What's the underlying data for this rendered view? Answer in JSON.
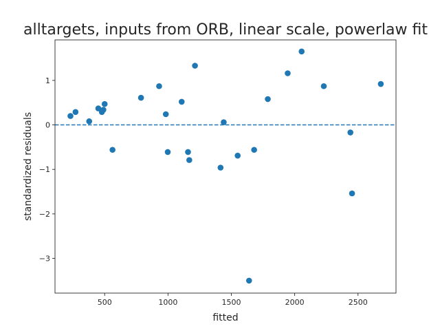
{
  "chart_data": {
    "type": "scatter",
    "title": "alltargets, inputs from ORB, linear scale, powerlaw fit",
    "xlabel": "fitted",
    "ylabel": "standardized residuals",
    "xlim": [
      108,
      2800
    ],
    "ylim": [
      -3.78,
      1.91
    ],
    "xticks": [
      500,
      1000,
      1500,
      2000,
      2500
    ],
    "yticks": [
      -3,
      -2,
      -1,
      0,
      1
    ],
    "xtick_labels": [
      "500",
      "1000",
      "1500",
      "2000",
      "2500"
    ],
    "ytick_labels": [
      "−3",
      "−2",
      "−1",
      "0",
      "1"
    ],
    "reference_line": {
      "y": 0,
      "style": "dashed"
    },
    "grid": false,
    "colors": {
      "points": "#1f77b4",
      "reference_line": "#1f77b4",
      "axes": "#262626"
    },
    "points": [
      {
        "x": 230,
        "y": 0.2
      },
      {
        "x": 270,
        "y": 0.29
      },
      {
        "x": 378,
        "y": 0.08
      },
      {
        "x": 450,
        "y": 0.37
      },
      {
        "x": 478,
        "y": 0.29
      },
      {
        "x": 490,
        "y": 0.34
      },
      {
        "x": 500,
        "y": 0.47
      },
      {
        "x": 562,
        "y": -0.56
      },
      {
        "x": 787,
        "y": 0.61
      },
      {
        "x": 930,
        "y": 0.87
      },
      {
        "x": 983,
        "y": 0.24
      },
      {
        "x": 998,
        "y": -0.61
      },
      {
        "x": 1108,
        "y": 0.52
      },
      {
        "x": 1158,
        "y": -0.61
      },
      {
        "x": 1168,
        "y": -0.79
      },
      {
        "x": 1213,
        "y": 1.33
      },
      {
        "x": 1415,
        "y": -0.96
      },
      {
        "x": 1440,
        "y": 0.06
      },
      {
        "x": 1550,
        "y": -0.69
      },
      {
        "x": 1640,
        "y": -3.5
      },
      {
        "x": 1680,
        "y": -0.56
      },
      {
        "x": 1788,
        "y": 0.58
      },
      {
        "x": 1945,
        "y": 1.16
      },
      {
        "x": 2055,
        "y": 1.65
      },
      {
        "x": 2230,
        "y": 0.87
      },
      {
        "x": 2440,
        "y": -0.17
      },
      {
        "x": 2453,
        "y": -1.54
      },
      {
        "x": 2680,
        "y": 0.92
      }
    ]
  }
}
